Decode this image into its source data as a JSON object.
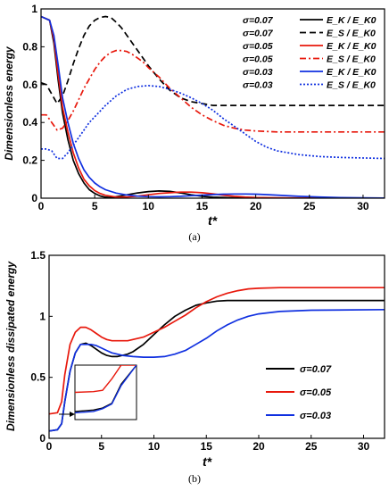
{
  "chart_data": [
    {
      "type": "line",
      "panel_label": "(a)",
      "xlabel": "t*",
      "ylabel": "Dimensionless energy",
      "xlim": [
        0,
        32
      ],
      "ylim": [
        0,
        1
      ],
      "xticks": [
        "0",
        "5",
        "10",
        "15",
        "20",
        "25",
        "30"
      ],
      "yticks": [
        "0",
        "0.2",
        "0.4",
        "0.6",
        "0.8",
        "1"
      ],
      "legend_position": "top-right",
      "series": [
        {
          "name": "σ=0.07",
          "quantity": "E_K / E_K0",
          "color": "#000000",
          "style": "solid",
          "x": [
            0,
            0.8,
            1.2,
            1.6,
            2,
            2.5,
            3,
            3.5,
            4,
            4.5,
            5,
            5.5,
            6,
            6.5,
            7,
            8,
            9,
            10,
            11,
            12,
            13,
            14,
            15,
            16,
            18,
            20,
            25,
            32
          ],
          "y": [
            0.96,
            0.94,
            0.82,
            0.62,
            0.45,
            0.31,
            0.2,
            0.13,
            0.08,
            0.045,
            0.025,
            0.012,
            0.005,
            0.004,
            0.008,
            0.018,
            0.028,
            0.035,
            0.038,
            0.036,
            0.028,
            0.018,
            0.01,
            0.005,
            0.002,
            0.001,
            0,
            0
          ]
        },
        {
          "name": "σ=0.07",
          "quantity": "E_S / E_K0",
          "color": "#000000",
          "style": "dashed",
          "x": [
            0,
            0.5,
            1,
            1.5,
            2,
            2.5,
            3,
            3.5,
            4,
            4.5,
            5,
            5.5,
            6,
            6.5,
            7,
            7.5,
            8,
            8.5,
            9,
            9.5,
            10,
            11,
            12,
            13,
            14,
            15,
            16,
            18,
            20,
            25,
            32
          ],
          "y": [
            0.61,
            0.6,
            0.55,
            0.5,
            0.54,
            0.62,
            0.71,
            0.79,
            0.86,
            0.91,
            0.94,
            0.955,
            0.96,
            0.955,
            0.93,
            0.9,
            0.86,
            0.82,
            0.78,
            0.74,
            0.7,
            0.63,
            0.57,
            0.53,
            0.51,
            0.5,
            0.49,
            0.49,
            0.49,
            0.49,
            0.49
          ]
        },
        {
          "name": "σ=0.05",
          "quantity": "E_K / E_K0",
          "color": "#e8180c",
          "style": "solid",
          "x": [
            0,
            0.8,
            1.2,
            1.6,
            2,
            2.5,
            3,
            3.5,
            4,
            4.5,
            5,
            5.5,
            6,
            7,
            8,
            9,
            10,
            11,
            12,
            13,
            14,
            15,
            16,
            17,
            18,
            19,
            20,
            22,
            25,
            32
          ],
          "y": [
            0.96,
            0.94,
            0.84,
            0.65,
            0.48,
            0.35,
            0.24,
            0.16,
            0.1,
            0.065,
            0.04,
            0.025,
            0.015,
            0.006,
            0.006,
            0.011,
            0.018,
            0.025,
            0.029,
            0.032,
            0.032,
            0.029,
            0.023,
            0.016,
            0.01,
            0.006,
            0.004,
            0.002,
            0.001,
            0
          ]
        },
        {
          "name": "σ=0.05",
          "quantity": "E_S / E_K0",
          "color": "#e8180c",
          "style": "dashdot",
          "x": [
            0,
            0.5,
            1,
            1.5,
            2,
            2.5,
            3,
            3.5,
            4,
            4.5,
            5,
            5.5,
            6,
            6.5,
            7,
            7.5,
            8,
            8.5,
            9,
            9.5,
            10,
            11,
            12,
            13,
            14,
            15,
            16,
            17,
            18,
            19,
            20,
            22,
            25,
            32
          ],
          "y": [
            0.44,
            0.44,
            0.4,
            0.36,
            0.37,
            0.41,
            0.46,
            0.52,
            0.58,
            0.63,
            0.68,
            0.72,
            0.75,
            0.77,
            0.78,
            0.78,
            0.775,
            0.76,
            0.74,
            0.72,
            0.69,
            0.64,
            0.58,
            0.53,
            0.48,
            0.44,
            0.41,
            0.385,
            0.37,
            0.36,
            0.355,
            0.35,
            0.35,
            0.35
          ]
        },
        {
          "name": "σ=0.03",
          "quantity": "E_K / E_K0",
          "color": "#1030e0",
          "style": "solid",
          "x": [
            0,
            0.8,
            1.2,
            1.6,
            2,
            2.5,
            3,
            3.5,
            4,
            4.5,
            5,
            5.5,
            6,
            7,
            8,
            9,
            10,
            11,
            12,
            13,
            14,
            15,
            16,
            17,
            18,
            19,
            20,
            21,
            22,
            24,
            26,
            28,
            32
          ],
          "y": [
            0.96,
            0.94,
            0.86,
            0.7,
            0.53,
            0.4,
            0.29,
            0.21,
            0.15,
            0.11,
            0.08,
            0.06,
            0.045,
            0.027,
            0.017,
            0.011,
            0.008,
            0.007,
            0.008,
            0.01,
            0.013,
            0.016,
            0.019,
            0.021,
            0.022,
            0.022,
            0.021,
            0.019,
            0.016,
            0.01,
            0.006,
            0.003,
            0.001
          ]
        },
        {
          "name": "σ=0.03",
          "quantity": "E_S / E_K0",
          "color": "#1030e0",
          "style": "dotted",
          "x": [
            0,
            0.5,
            1,
            1.5,
            2,
            2.5,
            3,
            3.5,
            4,
            4.5,
            5,
            5.5,
            6,
            7,
            8,
            9,
            10,
            11,
            12,
            13,
            14,
            15,
            16,
            17,
            18,
            19,
            20,
            21,
            22,
            24,
            26,
            28,
            32
          ],
          "y": [
            0.26,
            0.26,
            0.25,
            0.21,
            0.21,
            0.24,
            0.28,
            0.32,
            0.36,
            0.4,
            0.43,
            0.46,
            0.49,
            0.54,
            0.575,
            0.59,
            0.595,
            0.59,
            0.575,
            0.555,
            0.53,
            0.5,
            0.465,
            0.42,
            0.38,
            0.34,
            0.3,
            0.27,
            0.25,
            0.23,
            0.22,
            0.215,
            0.21
          ]
        }
      ]
    },
    {
      "type": "line",
      "panel_label": "(b)",
      "xlabel": "t*",
      "ylabel": "Dimensionless dissipated energy",
      "xlim": [
        0,
        32
      ],
      "ylim": [
        0,
        1.5
      ],
      "xticks": [
        "0",
        "5",
        "10",
        "15",
        "20",
        "25",
        "30"
      ],
      "yticks": [
        "0",
        "0.5",
        "1",
        "1.5"
      ],
      "legend_position": "right",
      "series": [
        {
          "name": "σ=0.07",
          "color": "#000000",
          "style": "solid",
          "x": [
            0,
            0.8,
            1.2,
            1.5,
            2,
            2.5,
            3,
            3.5,
            4,
            4.5,
            5,
            5.5,
            6,
            6.5,
            7,
            7.5,
            8,
            9,
            10,
            11,
            12,
            13,
            14,
            15,
            16,
            17,
            18,
            20,
            22,
            25,
            32
          ],
          "y": [
            0.06,
            0.07,
            0.12,
            0.3,
            0.55,
            0.7,
            0.77,
            0.78,
            0.76,
            0.73,
            0.7,
            0.68,
            0.67,
            0.67,
            0.68,
            0.69,
            0.71,
            0.77,
            0.85,
            0.93,
            1.0,
            1.05,
            1.09,
            1.11,
            1.125,
            1.13,
            1.13,
            1.13,
            1.13,
            1.13,
            1.13
          ]
        },
        {
          "name": "σ=0.05",
          "color": "#e8180c",
          "style": "solid",
          "x": [
            0,
            0.8,
            1.2,
            1.5,
            2,
            2.5,
            3,
            3.5,
            4,
            4.5,
            5,
            5.5,
            6,
            6.5,
            7,
            7.5,
            8,
            9,
            10,
            11,
            12,
            13,
            14,
            15,
            16,
            17,
            18,
            19,
            20,
            22,
            25,
            32
          ],
          "y": [
            0.2,
            0.21,
            0.3,
            0.52,
            0.77,
            0.87,
            0.91,
            0.91,
            0.89,
            0.86,
            0.83,
            0.81,
            0.8,
            0.8,
            0.8,
            0.8,
            0.81,
            0.83,
            0.87,
            0.91,
            0.96,
            1.01,
            1.07,
            1.12,
            1.16,
            1.19,
            1.21,
            1.225,
            1.23,
            1.235,
            1.235,
            1.235
          ]
        },
        {
          "name": "σ=0.03",
          "color": "#1030e0",
          "style": "solid",
          "x": [
            0,
            0.8,
            1.2,
            1.5,
            2,
            2.5,
            3,
            3.5,
            4,
            4.5,
            5,
            5.5,
            6,
            7,
            8,
            9,
            10,
            11,
            12,
            13,
            14,
            15,
            16,
            17,
            18,
            19,
            20,
            22,
            25,
            32
          ],
          "y": [
            0.06,
            0.07,
            0.12,
            0.3,
            0.55,
            0.7,
            0.77,
            0.77,
            0.77,
            0.76,
            0.74,
            0.72,
            0.7,
            0.68,
            0.67,
            0.665,
            0.665,
            0.67,
            0.69,
            0.72,
            0.77,
            0.82,
            0.88,
            0.93,
            0.97,
            1.0,
            1.02,
            1.04,
            1.05,
            1.055
          ]
        }
      ],
      "inset": {
        "xlim": [
          0,
          2
        ],
        "ylim": [
          0,
          0.4
        ],
        "series": [
          {
            "name": "σ=0.07",
            "color": "#000000",
            "x": [
              0,
              0.6,
              0.9,
              1.2,
              1.5,
              2
            ],
            "y": [
              0.06,
              0.07,
              0.085,
              0.12,
              0.26,
              0.4
            ]
          },
          {
            "name": "σ=0.05",
            "color": "#e8180c",
            "x": [
              0,
              0.6,
              0.9,
              1.2,
              1.5,
              2
            ],
            "y": [
              0.2,
              0.205,
              0.215,
              0.3,
              0.4,
              0.4
            ]
          },
          {
            "name": "σ=0.03",
            "color": "#1030e0",
            "x": [
              0,
              0.6,
              0.9,
              1.2,
              1.5,
              2
            ],
            "y": [
              0.05,
              0.06,
              0.08,
              0.115,
              0.25,
              0.4
            ]
          }
        ]
      }
    }
  ]
}
